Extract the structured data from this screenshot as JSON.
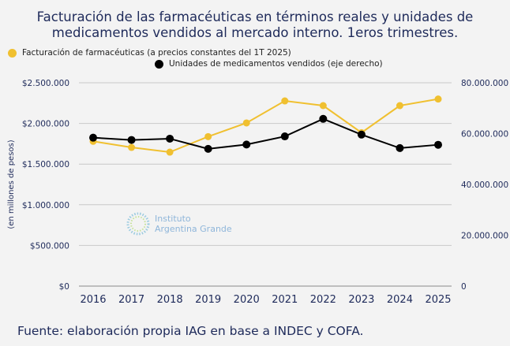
{
  "chart_data": {
    "type": "line",
    "title": "Facturación de las farmacéuticas en términos reales y unidades de medicamentos vendidos al mercado interno. 1eros trimestres.",
    "x": [
      "2016",
      "2017",
      "2018",
      "2019",
      "2020",
      "2021",
      "2022",
      "2023",
      "2024",
      "2025"
    ],
    "series": [
      {
        "name": "Facturación de farmacéuticas (a precios constantes del 1T 2025)",
        "axis": "left",
        "color": "#f0c030",
        "values": [
          1780000,
          1705000,
          1647000,
          1838000,
          2006000,
          2277000,
          2219000,
          1886000,
          2219000,
          2300000
        ]
      },
      {
        "name": "Unidades de medicamentos vendidos (eje derecho)",
        "axis": "right",
        "color": "#000000",
        "values": [
          58400000,
          57500000,
          58000000,
          54000000,
          55700000,
          58900000,
          65800000,
          59600000,
          54300000,
          55600000
        ]
      }
    ],
    "ylabel": "(en millones de pesos)",
    "ylim": [
      0,
      2500000
    ],
    "y_ticks": [
      "$0",
      "$500.000",
      "$1.000.000",
      "$1.500.000",
      "$2.000.000",
      "$2.500.000"
    ],
    "y2lim": [
      0,
      80000000
    ],
    "y2_ticks": [
      "0",
      "20.000.000",
      "40.000.000",
      "60.000.000",
      "80.000.000"
    ],
    "grid": true,
    "legend_position": "top"
  },
  "source": "Fuente: elaboración propia IAG en base a INDEC y COFA.",
  "logo": {
    "line1": "Instituto",
    "line2": "Argentina Grande"
  }
}
